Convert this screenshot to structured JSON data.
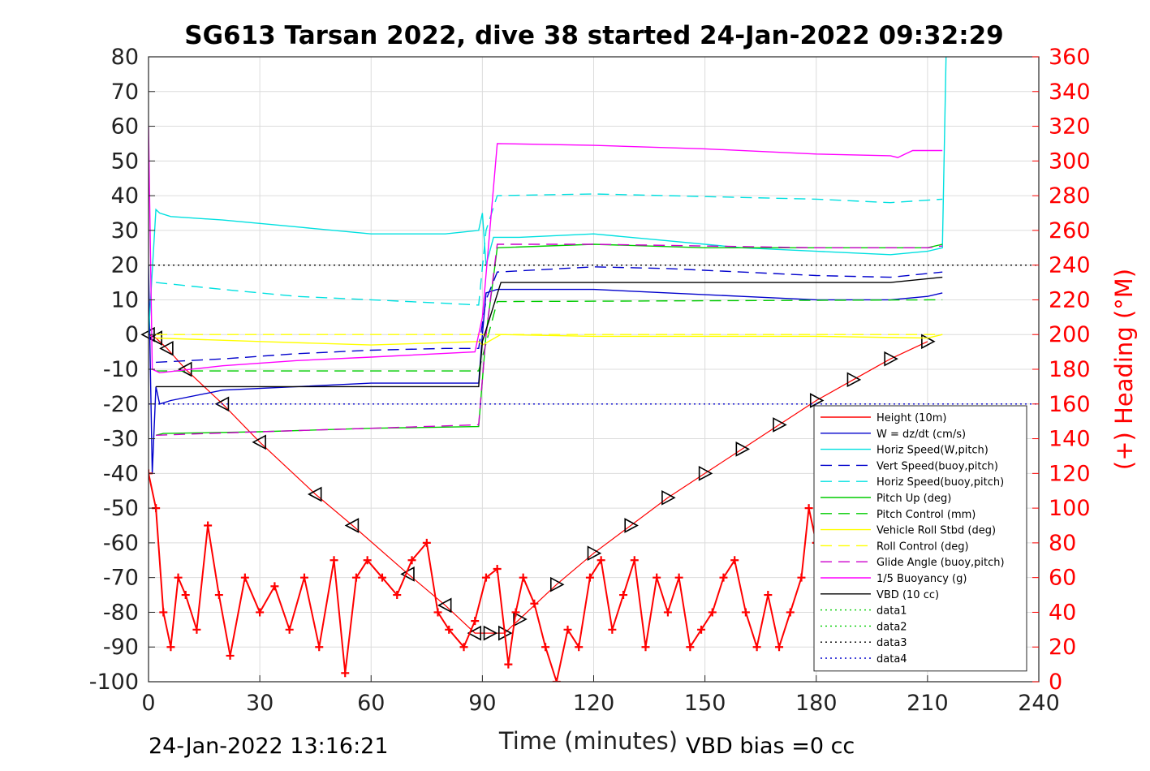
{
  "colors": {
    "height": "#ff0000",
    "w": "#0000cc",
    "horiz_speed": "#00e0e0",
    "pitch": "#00cc00",
    "roll": "#ffff00",
    "glide": "#cc00cc",
    "buoyancy": "#ff00ff",
    "vbd": "#000000",
    "heading": "#ff0000"
  },
  "chart_data": {
    "type": "line",
    "title": "SG613 Tarsan 2022, dive 38 started 24-Jan-2022 09:32:29",
    "xlabel": "Time (minutes)",
    "ylabel_right": "(+) Heading (°M)",
    "xlim": [
      0,
      240
    ],
    "ylim_left": [
      -100,
      80
    ],
    "ylim_right": [
      0,
      360
    ],
    "x_ticks": [
      "0",
      "30",
      "60",
      "90",
      "120",
      "150",
      "180",
      "210",
      "240"
    ],
    "y_left_ticks": [
      "80",
      "70",
      "60",
      "50",
      "40",
      "30",
      "20",
      "10",
      "0",
      "-10",
      "-20",
      "-30",
      "-40",
      "-50",
      "-60",
      "-70",
      "-80",
      "-90",
      "-100"
    ],
    "y_right_ticks": [
      "360",
      "340",
      "320",
      "300",
      "280",
      "260",
      "240",
      "220",
      "200",
      "180",
      "160",
      "140",
      "120",
      "100",
      "80",
      "60",
      "40",
      "20",
      "0"
    ],
    "grid": true,
    "legend_position": "lower-right",
    "footer_left": "24-Jan-2022 13:16:21",
    "footer_right": "VBD bias =0 cc",
    "legend": [
      {
        "label": "Height (10m)",
        "color": "#ff0000",
        "style": "solid"
      },
      {
        "label": "W = dz/dt (cm/s)",
        "color": "#0000cc",
        "style": "solid"
      },
      {
        "label": "Horiz Speed(W,pitch)",
        "color": "#00e0e0",
        "style": "solid"
      },
      {
        "label": "Vert Speed(buoy,pitch)",
        "color": "#0000cc",
        "style": "dashed"
      },
      {
        "label": "Horiz Speed(buoy,pitch)",
        "color": "#00e0e0",
        "style": "dashed"
      },
      {
        "label": "Pitch Up (deg)",
        "color": "#00cc00",
        "style": "solid"
      },
      {
        "label": "Pitch Control (mm)",
        "color": "#00cc00",
        "style": "dashed"
      },
      {
        "label": "Vehicle Roll Stbd (deg)",
        "color": "#ffff00",
        "style": "solid"
      },
      {
        "label": "Roll Control (deg)",
        "color": "#ffff00",
        "style": "dashed"
      },
      {
        "label": "Glide Angle (buoy,pitch)",
        "color": "#cc00cc",
        "style": "dashed"
      },
      {
        "label": "1/5 Buoyancy (g)",
        "color": "#ff00ff",
        "style": "solid"
      },
      {
        "label": "VBD (10 cc)",
        "color": "#000000",
        "style": "solid"
      },
      {
        "label": "data1",
        "color": "#00cc00",
        "style": "dotted"
      },
      {
        "label": "data2",
        "color": "#00cc00",
        "style": "dotted"
      },
      {
        "label": "data3",
        "color": "#000000",
        "style": "dotted"
      },
      {
        "label": "data4",
        "color": "#0000cc",
        "style": "dotted"
      }
    ],
    "series": [
      {
        "name": "Height (10m)",
        "x": [
          0,
          2,
          5,
          10,
          20,
          30,
          45,
          55,
          70,
          80,
          88,
          92,
          96,
          100,
          110,
          120,
          130,
          140,
          150,
          160,
          170,
          180,
          190,
          200,
          210
        ],
        "y": [
          0,
          -1,
          -4,
          -10,
          -20,
          -31,
          -46,
          -55,
          -69,
          -78,
          -86,
          -86,
          -86,
          -82,
          -72,
          -63,
          -55,
          -47,
          -40,
          -33,
          -26,
          -19,
          -13,
          -7,
          -2
        ]
      },
      {
        "name": "W = dz/dt (cm/s)",
        "x": [
          0,
          1,
          2,
          3,
          6,
          20,
          40,
          60,
          80,
          89,
          90,
          91,
          94,
          100,
          120,
          140,
          160,
          180,
          200,
          210,
          214
        ],
        "y": [
          20,
          -40,
          -15,
          -20,
          -19,
          -16,
          -15,
          -14,
          -14,
          -14,
          0,
          12,
          13,
          13,
          13,
          12,
          11,
          10,
          10,
          11,
          12
        ]
      },
      {
        "name": "Horiz Speed(W,pitch)",
        "x": [
          0,
          2,
          3,
          6,
          20,
          40,
          60,
          80,
          89,
          90,
          91,
          93,
          100,
          120,
          140,
          160,
          180,
          200,
          210,
          214,
          215
        ],
        "y": [
          0,
          36,
          35,
          34,
          33,
          31,
          29,
          29,
          30,
          35,
          20,
          28,
          28,
          29,
          27,
          25,
          24,
          23,
          24,
          25,
          80
        ]
      },
      {
        "name": "Vert Speed(buoy,pitch)",
        "x": [
          2,
          20,
          40,
          60,
          80,
          89,
          91,
          94,
          120,
          140,
          160,
          180,
          200,
          214
        ],
        "y": [
          -8,
          -7,
          -5.5,
          -4.5,
          -4,
          -4,
          10,
          18,
          19.5,
          19,
          18,
          17,
          16.5,
          18
        ]
      },
      {
        "name": "Horiz Speed(buoy,pitch)",
        "x": [
          2,
          20,
          40,
          60,
          80,
          89,
          91,
          94,
          120,
          140,
          160,
          180,
          200,
          214
        ],
        "y": [
          15,
          13,
          11,
          10,
          9,
          8.5,
          30,
          40,
          40.5,
          40,
          39.5,
          39,
          38,
          39
        ]
      },
      {
        "name": "Pitch Up (deg)",
        "x": [
          2,
          4,
          30,
          60,
          89,
          91,
          94,
          120,
          150,
          180,
          210,
          214
        ],
        "y": [
          -29,
          -28.5,
          -28,
          -27,
          -26.5,
          0,
          25,
          26,
          25,
          25,
          25,
          26
        ]
      },
      {
        "name": "Pitch Control (mm)",
        "x": [
          2,
          89,
          94,
          214
        ],
        "y": [
          -10.5,
          -10.5,
          9.5,
          10
        ]
      },
      {
        "name": "Vehicle Roll Stbd (deg)",
        "x": [
          2,
          30,
          60,
          89,
          90,
          95,
          120,
          150,
          180,
          210,
          214
        ],
        "y": [
          -1,
          -2,
          -3,
          -2,
          -3,
          0,
          -0.5,
          -0.5,
          -0.5,
          -1,
          0
        ]
      },
      {
        "name": "Roll Control (deg)",
        "x": [
          2,
          89,
          94,
          214
        ],
        "y": [
          0,
          0,
          0,
          0
        ]
      },
      {
        "name": "Glide Angle (buoy,pitch)",
        "x": [
          2,
          30,
          60,
          89,
          91,
          94,
          120,
          150,
          180,
          210,
          214
        ],
        "y": [
          -29,
          -28,
          -27,
          -26,
          0,
          26,
          26,
          25.5,
          25,
          25,
          25.5
        ]
      },
      {
        "name": "1/5 Buoyancy (g)",
        "x": [
          0,
          1,
          3,
          20,
          40,
          60,
          88,
          90,
          94,
          120,
          150,
          180,
          200,
          202,
          204,
          206,
          214
        ],
        "y": [
          60,
          -10,
          -11,
          -9,
          -7.5,
          -6.5,
          -5,
          5,
          55,
          54.5,
          53.5,
          52,
          51.5,
          51,
          52,
          53,
          53
        ]
      },
      {
        "name": "VBD (10 cc)",
        "x": [
          2,
          89,
          90,
          95,
          200,
          214
        ],
        "y": [
          -15,
          -15,
          -2,
          15,
          15,
          16.5
        ]
      },
      {
        "name": "data3",
        "x": [
          0,
          240
        ],
        "y": [
          20,
          20
        ]
      },
      {
        "name": "data4",
        "x": [
          0,
          240
        ],
        "y": [
          -20,
          -20
        ]
      },
      {
        "name": "Heading",
        "axis": "right",
        "x": [
          0,
          2,
          4,
          6,
          8,
          10,
          13,
          16,
          19,
          22,
          26,
          30,
          34,
          38,
          42,
          46,
          50,
          53,
          56,
          59,
          63,
          67,
          71,
          75,
          78,
          81,
          85,
          88,
          91,
          94,
          97,
          99,
          101,
          104,
          107,
          110,
          113,
          116,
          119,
          122,
          125,
          128,
          131,
          134,
          137,
          140,
          143,
          146,
          149,
          152,
          155,
          158,
          161,
          164,
          167,
          170,
          173,
          176,
          178,
          180,
          182,
          184,
          186,
          188,
          190,
          192,
          195,
          198,
          201,
          204,
          207,
          210,
          213
        ],
        "y": [
          120,
          100,
          40,
          20,
          60,
          50,
          30,
          90,
          50,
          15,
          60,
          40,
          55,
          30,
          60,
          20,
          70,
          5,
          60,
          70,
          60,
          50,
          70,
          80,
          40,
          30,
          20,
          35,
          60,
          65,
          10,
          40,
          60,
          45,
          20,
          0,
          30,
          20,
          60,
          70,
          30,
          50,
          70,
          20,
          60,
          40,
          60,
          20,
          30,
          40,
          60,
          70,
          40,
          20,
          50,
          20,
          40,
          60,
          100,
          80,
          60,
          50,
          40,
          30,
          60,
          50,
          40,
          30,
          10,
          40,
          60,
          40,
          30
        ]
      }
    ]
  }
}
